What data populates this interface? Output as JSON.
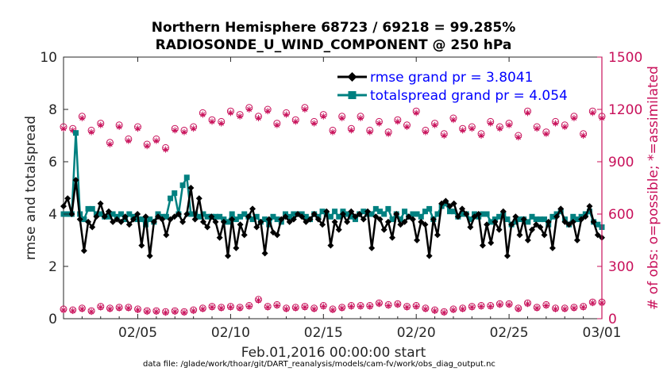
{
  "chart_data": {
    "type": "line",
    "title": "Northern Hemisphere 68723 / 69218 = 99.285%",
    "subtitle": "RADIOSONDE_U_WIND_COMPONENT @ 250 hPa",
    "xlabel": "Feb.01,2016 00:00:00 start",
    "ylabel": "rmse and totalspread",
    "y2label": "# of obs: o=possible; *=assimilated",
    "footer": "data file: /glade/work/thoar/git/DART_reanalysis/models/cam-fv/work/obs_diag_output.nc",
    "xlim": [
      0,
      29
    ],
    "ylim": [
      0,
      10
    ],
    "y2lim": [
      0,
      1500
    ],
    "xticks": [
      4,
      9,
      14,
      19,
      24,
      29
    ],
    "xticklabels": [
      "02/05",
      "02/10",
      "02/15",
      "02/20",
      "02/25",
      "03/01"
    ],
    "yticks": [
      0,
      2,
      4,
      6,
      8,
      10
    ],
    "yticklabels": [
      "0",
      "2",
      "4",
      "6",
      "8",
      "10"
    ],
    "y2ticks": [
      0,
      300,
      600,
      900,
      1200,
      1500
    ],
    "y2ticklabels": [
      "0",
      "300",
      "600",
      "900",
      "1200",
      "1500"
    ],
    "legend_position": "top-right",
    "colors": {
      "rmse": "#000000",
      "spread": "#008080",
      "obs": "#c8105a",
      "axis": "#262626"
    },
    "series": [
      {
        "name": "rmse grand pr = 3.8041",
        "marker": "diamond",
        "values": [
          4.3,
          4.6,
          4.0,
          5.3,
          3.8,
          2.6,
          3.7,
          3.5,
          3.9,
          4.4,
          3.9,
          4.1,
          3.7,
          3.8,
          3.7,
          3.9,
          3.6,
          3.8,
          4.0,
          2.8,
          3.9,
          2.4,
          3.7,
          3.9,
          3.8,
          3.2,
          3.8,
          3.9,
          4.0,
          3.7,
          4.0,
          5.0,
          3.8,
          4.6,
          3.7,
          3.5,
          3.9,
          3.7,
          3.1,
          3.7,
          2.4,
          3.8,
          2.7,
          3.6,
          3.2,
          3.9,
          4.2,
          3.5,
          3.7,
          2.5,
          3.8,
          3.3,
          3.2,
          3.8,
          3.9,
          3.7,
          3.8,
          4.0,
          3.9,
          3.7,
          3.8,
          4.0,
          3.8,
          3.6,
          4.1,
          2.8,
          3.7,
          3.4,
          4.0,
          3.7,
          4.1,
          3.9,
          4.0,
          3.8,
          4.1,
          2.7,
          3.9,
          3.8,
          3.4,
          3.7,
          3.1,
          4.0,
          3.6,
          3.7,
          3.9,
          3.8,
          3.0,
          3.7,
          3.6,
          2.4,
          3.8,
          3.2,
          4.4,
          4.5,
          4.3,
          4.4,
          3.9,
          4.2,
          4.0,
          3.5,
          3.9,
          4.0,
          2.8,
          3.6,
          2.9,
          3.7,
          3.4,
          4.1,
          2.4,
          3.6,
          3.9,
          3.2,
          3.8,
          3.0,
          3.4,
          3.6,
          3.5,
          3.2,
          3.7,
          2.7,
          3.9,
          4.2,
          3.7,
          3.6,
          3.7,
          3.0,
          3.8,
          3.9,
          4.3,
          3.7,
          3.2,
          3.1
        ]
      },
      {
        "name": "totalspread grand pr = 4.054",
        "marker": "square",
        "values": [
          4.0,
          4.0,
          4.0,
          7.1,
          4.0,
          3.8,
          4.2,
          4.2,
          4.0,
          4.0,
          3.9,
          3.9,
          4.0,
          3.9,
          4.0,
          3.8,
          4.0,
          3.9,
          3.8,
          3.8,
          3.6,
          3.8,
          3.7,
          4.0,
          3.9,
          3.9,
          4.6,
          4.8,
          4.0,
          5.1,
          5.4,
          4.0,
          4.0,
          3.9,
          4.0,
          3.9,
          3.9,
          3.9,
          3.9,
          3.8,
          3.7,
          4.0,
          3.8,
          3.9,
          4.0,
          3.9,
          3.8,
          3.9,
          3.7,
          3.8,
          3.6,
          3.9,
          3.8,
          3.7,
          4.0,
          3.9,
          4.0,
          4.0,
          4.0,
          3.9,
          3.8,
          4.0,
          3.9,
          4.1,
          4.0,
          3.9,
          4.1,
          3.9,
          4.1,
          4.0,
          3.9,
          3.8,
          4.0,
          4.1,
          4.0,
          4.0,
          4.2,
          4.1,
          4.0,
          4.2,
          3.8,
          4.0,
          3.8,
          4.1,
          3.9,
          4.0,
          4.0,
          3.9,
          4.1,
          4.2,
          3.8,
          4.0,
          4.3,
          4.4,
          4.1,
          4.1,
          3.9,
          4.0,
          4.0,
          3.8,
          4.0,
          3.9,
          4.0,
          4.0,
          3.7,
          3.8,
          3.9,
          4.0,
          3.8,
          3.6,
          3.7,
          3.8,
          3.8,
          3.7,
          3.9,
          3.8,
          3.8,
          3.8,
          3.6,
          3.9,
          4.0,
          4.1,
          3.8,
          3.6,
          3.9,
          3.8,
          3.9,
          4.0,
          4.1,
          3.7,
          3.6,
          3.5
        ]
      },
      {
        "name": "obs possible (o)",
        "marker": "circle",
        "axis": "right",
        "x": [
          0,
          0.5,
          1,
          1.5,
          2,
          2.5,
          3,
          3.5,
          4,
          4.5,
          5,
          5.5,
          6,
          6.5,
          7,
          7.5,
          8,
          8.5,
          9,
          9.5,
          10,
          10.5,
          11,
          11.5,
          12,
          12.5,
          13,
          13.5,
          14,
          14.5,
          15,
          15.5,
          16,
          16.5,
          17,
          17.5,
          18,
          18.5,
          19,
          19.5,
          20,
          20.5,
          21,
          21.5,
          22,
          22.5,
          23,
          23.5,
          24,
          24.5,
          25,
          25.5,
          26,
          26.5,
          27,
          27.5,
          28,
          28.5,
          29
        ],
        "values": [
          1100,
          1090,
          1160,
          1080,
          1120,
          1010,
          1110,
          1030,
          1100,
          1000,
          1030,
          980,
          1090,
          1080,
          1100,
          1180,
          1140,
          1130,
          1190,
          1170,
          1210,
          1160,
          1200,
          1120,
          1180,
          1140,
          1210,
          1130,
          1170,
          1080,
          1160,
          1090,
          1160,
          1080,
          1130,
          1070,
          1140,
          1110,
          1190,
          1080,
          1120,
          1060,
          1150,
          1090,
          1100,
          1060,
          1130,
          1100,
          1120,
          1050,
          1190,
          1100,
          1070,
          1130,
          1110,
          1160,
          1060,
          1190,
          1160
        ]
      },
      {
        "name": "obs assimilated (*)",
        "marker": "asterisk",
        "axis": "right",
        "x": [
          0,
          0.5,
          1,
          1.5,
          2,
          2.5,
          3,
          3.5,
          4,
          4.5,
          5,
          5.5,
          6,
          6.5,
          7,
          7.5,
          8,
          8.5,
          9,
          9.5,
          10,
          10.5,
          11,
          11.5,
          12,
          12.5,
          13,
          13.5,
          14,
          14.5,
          15,
          15.5,
          16,
          16.5,
          17,
          17.5,
          18,
          18.5,
          19,
          19.5,
          20,
          20.5,
          21,
          21.5,
          22,
          22.5,
          23,
          23.5,
          24,
          24.5,
          25,
          25.5,
          26,
          26.5,
          27,
          27.5,
          28,
          28.5,
          29
        ],
        "values": [
          1090,
          1080,
          1150,
          1070,
          1110,
          1000,
          1100,
          1020,
          1090,
          990,
          1020,
          970,
          1080,
          1070,
          1090,
          1170,
          1130,
          1120,
          1180,
          1160,
          1200,
          1150,
          1190,
          1110,
          1170,
          1130,
          1200,
          1120,
          1160,
          1070,
          1150,
          1080,
          1150,
          1070,
          1120,
          1060,
          1130,
          1100,
          1180,
          1070,
          1110,
          1050,
          1140,
          1080,
          1090,
          1050,
          1120,
          1090,
          1110,
          1040,
          1180,
          1090,
          1060,
          1120,
          1100,
          1150,
          1050,
          1180,
          1150
        ]
      },
      {
        "name": "obs bottom possible (o)",
        "marker": "circle",
        "axis": "right",
        "x": [
          0,
          0.5,
          1,
          1.5,
          2,
          2.5,
          3,
          3.5,
          4,
          4.5,
          5,
          5.5,
          6,
          6.5,
          7,
          7.5,
          8,
          8.5,
          9,
          9.5,
          10,
          10.5,
          11,
          11.5,
          12,
          12.5,
          13,
          13.5,
          14,
          14.5,
          15,
          15.5,
          16,
          16.5,
          17,
          17.5,
          18,
          18.5,
          19,
          19.5,
          20,
          20.5,
          21,
          21.5,
          22,
          22.5,
          23,
          23.5,
          24,
          24.5,
          25,
          25.5,
          26,
          26.5,
          27,
          27.5,
          28,
          28.5,
          29
        ],
        "values": [
          55,
          50,
          60,
          45,
          70,
          60,
          65,
          65,
          55,
          45,
          45,
          40,
          45,
          40,
          50,
          60,
          70,
          65,
          70,
          65,
          75,
          110,
          70,
          80,
          60,
          65,
          70,
          60,
          75,
          55,
          65,
          75,
          75,
          75,
          90,
          80,
          85,
          70,
          75,
          60,
          50,
          40,
          55,
          60,
          70,
          75,
          75,
          85,
          85,
          60,
          90,
          65,
          80,
          60,
          60,
          65,
          70,
          95,
          95
        ]
      },
      {
        "name": "obs bottom assimilated (*)",
        "marker": "asterisk",
        "axis": "right",
        "x": [
          0,
          0.5,
          1,
          1.5,
          2,
          2.5,
          3,
          3.5,
          4,
          4.5,
          5,
          5.5,
          6,
          6.5,
          7,
          7.5,
          8,
          8.5,
          9,
          9.5,
          10,
          10.5,
          11,
          11.5,
          12,
          12.5,
          13,
          13.5,
          14,
          14.5,
          15,
          15.5,
          16,
          16.5,
          17,
          17.5,
          18,
          18.5,
          19,
          19.5,
          20,
          20.5,
          21,
          21.5,
          22,
          22.5,
          23,
          23.5,
          24,
          24.5,
          25,
          25.5,
          26,
          26.5,
          27,
          27.5,
          28,
          28.5,
          29
        ],
        "values": [
          50,
          45,
          55,
          40,
          65,
          55,
          60,
          60,
          50,
          40,
          40,
          35,
          40,
          35,
          45,
          55,
          65,
          60,
          65,
          60,
          70,
          105,
          65,
          75,
          55,
          60,
          65,
          55,
          70,
          50,
          60,
          70,
          70,
          70,
          85,
          75,
          80,
          65,
          70,
          55,
          45,
          35,
          50,
          55,
          65,
          70,
          70,
          80,
          80,
          55,
          85,
          60,
          75,
          55,
          55,
          60,
          65,
          90,
          90
        ]
      }
    ]
  }
}
